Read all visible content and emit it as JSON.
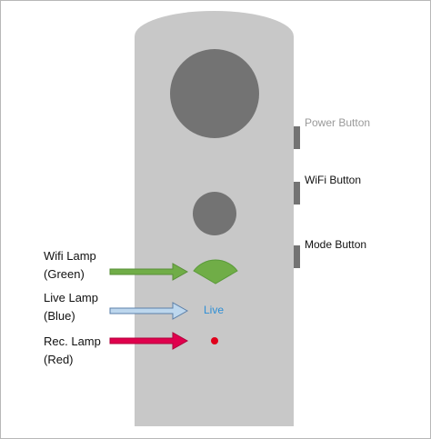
{
  "buttons": {
    "power": "Power Button",
    "wifi": "WiFi Button",
    "mode": "Mode Button"
  },
  "lamps": {
    "wifi": {
      "line1": "Wifi Lamp",
      "line2": "(Green)"
    },
    "live": {
      "line1": "Live Lamp",
      "line2": "(Blue)"
    },
    "rec": {
      "line1": "Rec. Lamp",
      "line2": "(Red)"
    }
  },
  "live_indicator_text": "Live",
  "colors": {
    "body": "#c8c8c8",
    "lens": "#737373",
    "wifi_lamp": "#70ad47",
    "live_arrow": "#bdd7ee",
    "live_text": "#2e8fd6",
    "rec_arrow": "#e0004d",
    "rec_lamp": "#e0001b"
  }
}
